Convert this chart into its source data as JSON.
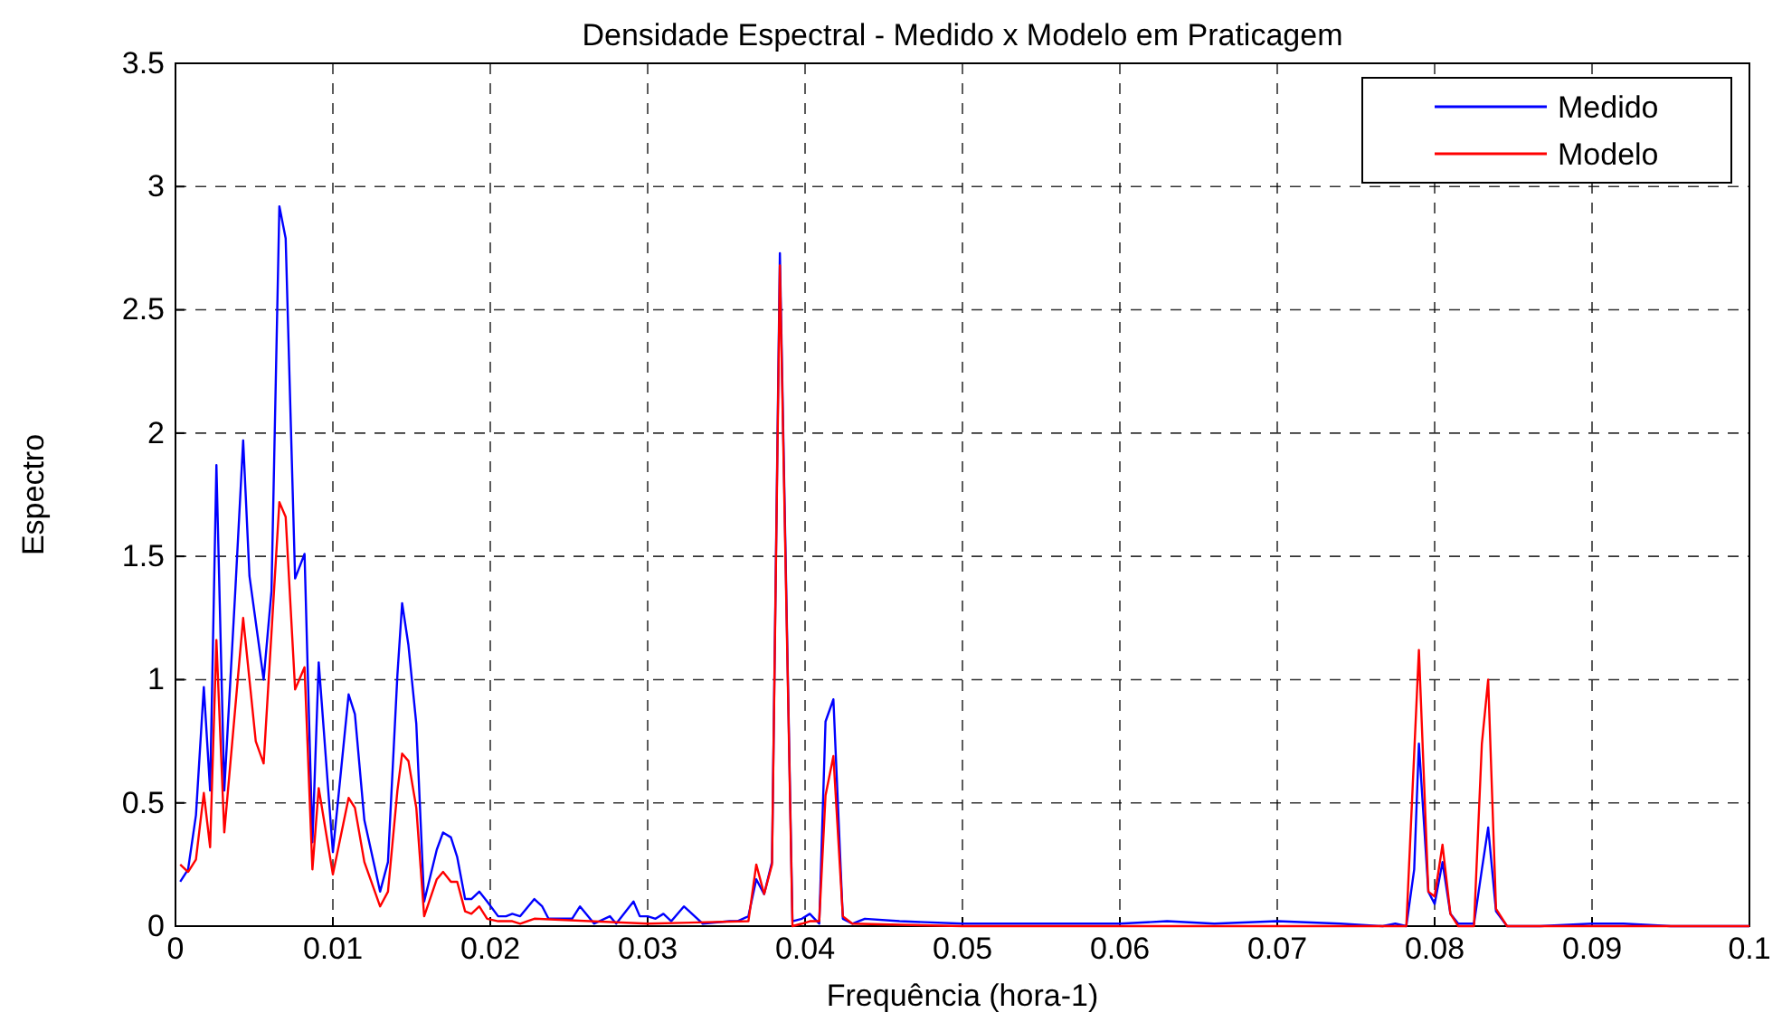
{
  "chart_data": {
    "type": "line",
    "title": "Densidade Espectral - Medido x Modelo em Praticagem",
    "xlabel": "Frequência (hora-1)",
    "ylabel": "Espectro",
    "xlim": [
      0,
      0.1
    ],
    "xticks": [
      0,
      0.01,
      0.02,
      0.03,
      0.04,
      0.05,
      0.06,
      0.07,
      0.08,
      0.09,
      0.1
    ],
    "ylim": [
      0,
      3.5
    ],
    "yticks": [
      0,
      0.5,
      1,
      1.5,
      2,
      2.5,
      3,
      3.5
    ],
    "grid": true,
    "legend": "top right",
    "line_style": "solid",
    "marker": "none",
    "series": [
      {
        "name": "Medido",
        "color": "#0000ff",
        "x": [
          0.0003,
          0.0008,
          0.0013,
          0.0018,
          0.0022,
          0.0026,
          0.0031,
          0.0038,
          0.0043,
          0.0047,
          0.0056,
          0.0061,
          0.0066,
          0.007,
          0.0076,
          0.0082,
          0.0087,
          0.0091,
          0.01,
          0.011,
          0.0114,
          0.012,
          0.013,
          0.0135,
          0.0141,
          0.0144,
          0.0148,
          0.0153,
          0.0158,
          0.0166,
          0.017,
          0.0175,
          0.0179,
          0.0184,
          0.0188,
          0.0193,
          0.0198,
          0.0205,
          0.021,
          0.0214,
          0.0219,
          0.0228,
          0.0233,
          0.0237,
          0.0252,
          0.0257,
          0.0266,
          0.0276,
          0.028,
          0.0291,
          0.0295,
          0.03,
          0.0305,
          0.031,
          0.0315,
          0.0323,
          0.0335,
          0.0352,
          0.0357,
          0.0364,
          0.0369,
          0.0374,
          0.0379,
          0.0384,
          0.0392,
          0.0398,
          0.0403,
          0.0409,
          0.0413,
          0.0418,
          0.0424,
          0.043,
          0.0438,
          0.046,
          0.05,
          0.055,
          0.06,
          0.063,
          0.066,
          0.07,
          0.074,
          0.0767,
          0.0775,
          0.0782,
          0.0787,
          0.079,
          0.0796,
          0.08,
          0.0805,
          0.081,
          0.0815,
          0.0825,
          0.083,
          0.0834,
          0.0839,
          0.0846,
          0.0867,
          0.09,
          0.092,
          0.095,
          0.1
        ],
        "values": [
          0.18,
          0.23,
          0.45,
          0.97,
          0.55,
          1.87,
          0.55,
          1.36,
          1.97,
          1.42,
          1.0,
          1.36,
          2.92,
          2.79,
          1.41,
          1.51,
          0.34,
          1.07,
          0.3,
          0.94,
          0.86,
          0.43,
          0.14,
          0.26,
          1.02,
          1.31,
          1.14,
          0.82,
          0.1,
          0.31,
          0.38,
          0.36,
          0.28,
          0.11,
          0.11,
          0.14,
          0.1,
          0.04,
          0.04,
          0.05,
          0.04,
          0.11,
          0.08,
          0.03,
          0.03,
          0.08,
          0.01,
          0.04,
          0.01,
          0.1,
          0.04,
          0.04,
          0.03,
          0.05,
          0.02,
          0.08,
          0.01,
          0.02,
          0.02,
          0.04,
          0.19,
          0.13,
          0.26,
          2.73,
          0.02,
          0.03,
          0.05,
          0.01,
          0.83,
          0.92,
          0.03,
          0.01,
          0.03,
          0.02,
          0.01,
          0.01,
          0.01,
          0.02,
          0.01,
          0.02,
          0.01,
          0.0,
          0.01,
          0.0,
          0.23,
          0.74,
          0.14,
          0.09,
          0.26,
          0.05,
          0.01,
          0.01,
          0.23,
          0.4,
          0.06,
          0.0,
          0.0,
          0.01,
          0.01,
          0.0,
          0.0
        ]
      },
      {
        "name": "Modelo",
        "color": "#ff0000",
        "x": [
          0.0003,
          0.0008,
          0.0013,
          0.0018,
          0.0022,
          0.0026,
          0.0031,
          0.0043,
          0.0051,
          0.0056,
          0.0066,
          0.007,
          0.0076,
          0.0082,
          0.0087,
          0.0091,
          0.01,
          0.011,
          0.0114,
          0.012,
          0.013,
          0.0135,
          0.0141,
          0.0144,
          0.0148,
          0.0153,
          0.0158,
          0.0166,
          0.017,
          0.0175,
          0.0179,
          0.0184,
          0.0188,
          0.0193,
          0.0198,
          0.0205,
          0.0214,
          0.0219,
          0.0228,
          0.03,
          0.0364,
          0.0369,
          0.0374,
          0.0379,
          0.0384,
          0.0392,
          0.0398,
          0.0403,
          0.0409,
          0.0413,
          0.0418,
          0.0424,
          0.043,
          0.05,
          0.06,
          0.07,
          0.0782,
          0.079,
          0.0796,
          0.08,
          0.0805,
          0.081,
          0.0815,
          0.0825,
          0.083,
          0.0834,
          0.0839,
          0.0846,
          0.09,
          0.1
        ],
        "values": [
          0.25,
          0.22,
          0.27,
          0.54,
          0.32,
          1.16,
          0.38,
          1.25,
          0.75,
          0.66,
          1.72,
          1.66,
          0.96,
          1.05,
          0.23,
          0.56,
          0.21,
          0.52,
          0.48,
          0.26,
          0.08,
          0.14,
          0.55,
          0.7,
          0.67,
          0.48,
          0.04,
          0.19,
          0.22,
          0.18,
          0.18,
          0.06,
          0.05,
          0.08,
          0.03,
          0.02,
          0.02,
          0.01,
          0.03,
          0.01,
          0.02,
          0.25,
          0.13,
          0.25,
          2.68,
          0.0,
          0.01,
          0.02,
          0.02,
          0.53,
          0.69,
          0.04,
          0.01,
          0.0,
          0.0,
          0.0,
          0.0,
          1.12,
          0.14,
          0.12,
          0.33,
          0.05,
          0.0,
          0.0,
          0.74,
          1.0,
          0.07,
          0.0,
          0.0,
          0.0
        ]
      }
    ]
  }
}
